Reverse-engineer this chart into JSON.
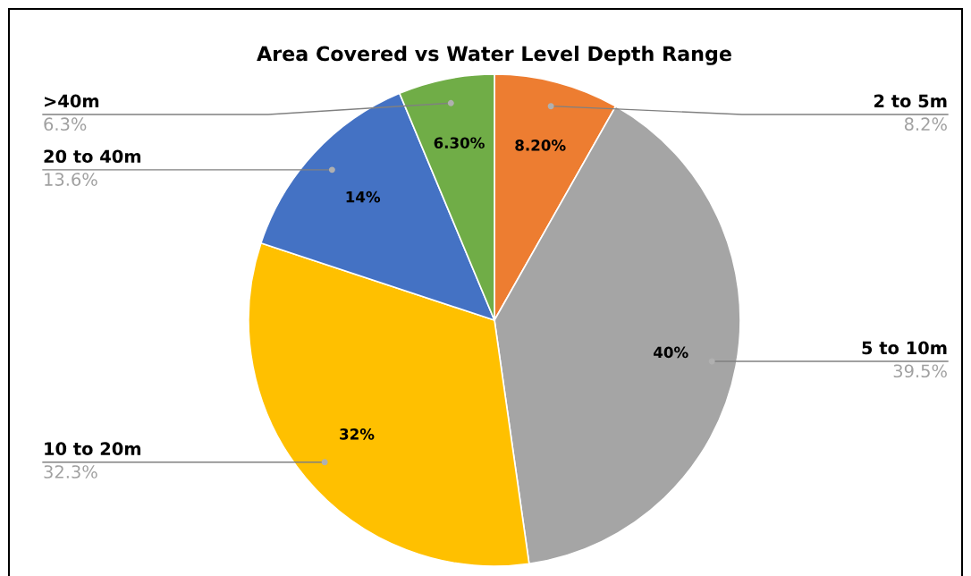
{
  "chart_data": {
    "type": "pie",
    "title": "Area Covered vs Water Level Depth Range",
    "categories": [
      "2 to 5m",
      "5 to 10m",
      "10 to 20m",
      "20 to 40m",
      ">40m"
    ],
    "values": [
      8.2,
      39.5,
      32.3,
      13.6,
      6.3
    ],
    "colors": [
      "#ed7d31",
      "#a5a5a5",
      "#ffc000",
      "#4472c4",
      "#70ad47"
    ],
    "value_labels": [
      "8.20%",
      "40%",
      "32%",
      "14%",
      "6.30%"
    ],
    "annotations": [
      {
        "text": "8.2%",
        "x": "2 to 5m"
      },
      {
        "text": "39.5%",
        "x": "5 to 10m"
      },
      {
        "text": "32.3%",
        "x": "10 to 20m"
      },
      {
        "text": "13.6%",
        "x": "20 to 40m"
      },
      {
        "text": "6.3%",
        "x": ">40m"
      }
    ],
    "legend": false
  }
}
